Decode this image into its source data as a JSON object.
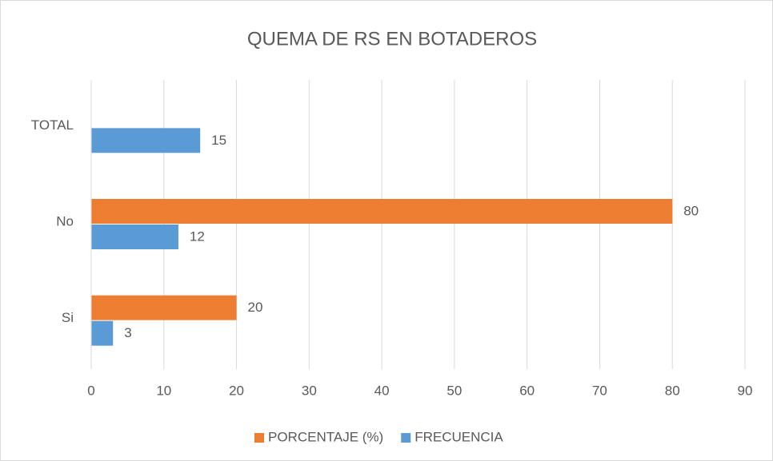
{
  "chart_data": {
    "type": "hbar",
    "title": "QUEMA DE RS EN BOTADEROS",
    "categories": [
      "Si",
      "No",
      "TOTAL"
    ],
    "series": [
      {
        "name": "PORCENTAJE (%)",
        "color": "#ed7d31",
        "values": [
          20,
          80,
          null
        ]
      },
      {
        "name": "FRECUENCIA",
        "color": "#5b9bd5",
        "values": [
          3,
          12,
          15
        ]
      }
    ],
    "xlim": [
      0,
      90
    ],
    "xticks": [
      0,
      10,
      20,
      30,
      40,
      50,
      60,
      70,
      80,
      90
    ],
    "grid": true,
    "legend": "bottom"
  }
}
